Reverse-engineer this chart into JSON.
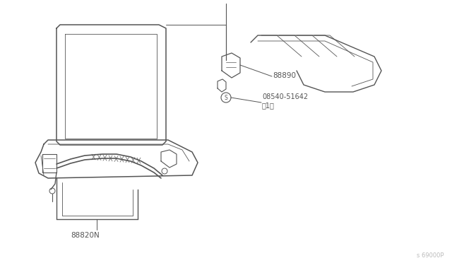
{
  "bg_color": "#ffffff",
  "line_color": "#555555",
  "line_width": 0.9,
  "label_88890": "88890",
  "label_bolt": "08540-51642\n（1）",
  "label_88820N": "88820N",
  "label_watermark": "s 69000P",
  "text_color": "#555555",
  "watermark_color": "#bbbbbb"
}
